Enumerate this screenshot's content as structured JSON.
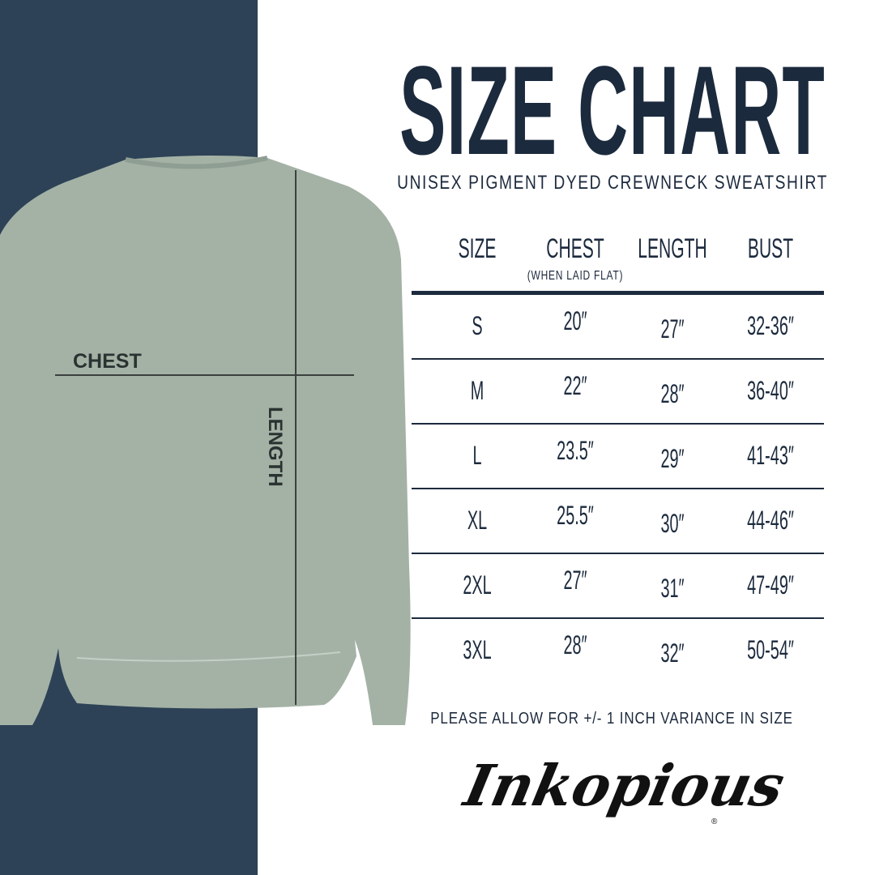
{
  "title": "SIZE CHART",
  "subtitle": "UNISEX PIGMENT DYED CREWNECK SWEATSHIRT",
  "table": {
    "headers": [
      "SIZE",
      "CHEST",
      "LENGTH",
      "BUST"
    ],
    "chest_note": "(WHEN LAID FLAT)",
    "rows": [
      [
        "S",
        "20″",
        "27″",
        "32-36″"
      ],
      [
        "M",
        "22″",
        "28″",
        "36-40″"
      ],
      [
        "L",
        "23.5″",
        "29″",
        "41-43″"
      ],
      [
        "XL",
        "25.5″",
        "30″",
        "44-46″"
      ],
      [
        "2XL",
        "27″",
        "31″",
        "47-49″"
      ],
      [
        "3XL",
        "28″",
        "32″",
        "50-54″"
      ]
    ]
  },
  "note": "PLEASE ALLOW FOR +/- 1 INCH VARIANCE IN SIZE",
  "diagram": {
    "chest_label": "CHEST",
    "length_label": "LENGTH"
  },
  "brand": {
    "logo_text": "Inkopious",
    "registered": "®"
  },
  "colors": {
    "navy": "#2d4256",
    "sweatshirt": "#a4b2a6",
    "text": "#1c2a3d"
  }
}
